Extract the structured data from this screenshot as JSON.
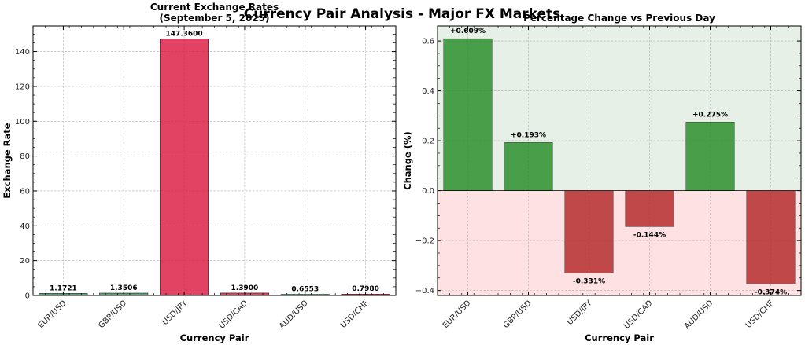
{
  "suptitle": "Currency Pair Analysis - Major FX Markets",
  "chart_data": [
    {
      "type": "bar",
      "title_line1": "Current Exchange Rates",
      "title_line2": "(September 5, 2025)",
      "xlabel": "Currency Pair",
      "ylabel": "Exchange Rate",
      "categories": [
        "EUR/USD",
        "GBP/USD",
        "USD/JPY",
        "USD/CAD",
        "AUD/USD",
        "USD/CHF"
      ],
      "values": [
        1.1721,
        1.3506,
        147.36,
        1.39,
        0.6553,
        0.798
      ],
      "value_labels": [
        "1.1721",
        "1.3506",
        "147.3600",
        "1.3900",
        "0.6553",
        "0.7980"
      ],
      "bar_colors": [
        "#2e8b57",
        "#2e8b57",
        "#dc143c",
        "#dc143c",
        "#2e8b57",
        "#dc143c"
      ],
      "ylim": [
        0,
        154.7
      ],
      "yticks": [
        0,
        20,
        40,
        60,
        80,
        100,
        120,
        140
      ],
      "grid": true
    },
    {
      "type": "bar",
      "title": "Percentage Change vs Previous Day",
      "xlabel": "Currency Pair",
      "ylabel": "Change (%)",
      "categories": [
        "EUR/USD",
        "GBP/USD",
        "USD/JPY",
        "USD/CAD",
        "AUD/USD",
        "USD/CHF"
      ],
      "values": [
        0.609,
        0.193,
        -0.331,
        -0.144,
        0.275,
        -0.374
      ],
      "value_labels": [
        "+0.609%",
        "+0.193%",
        "-0.331%",
        "-0.144%",
        "+0.275%",
        "-0.374%"
      ],
      "positive_color": "#228b22",
      "negative_color": "#b22222",
      "positive_region_color": "#e6f0e6",
      "negative_region_color": "#fde1e3",
      "ylim": [
        -0.42,
        0.66
      ],
      "yticks": [
        -0.4,
        -0.2,
        0.0,
        0.2,
        0.4,
        0.6
      ],
      "ytick_labels": [
        "−0.4",
        "−0.2",
        "0.0",
        "0.2",
        "0.4",
        "0.6"
      ],
      "grid": true
    }
  ]
}
